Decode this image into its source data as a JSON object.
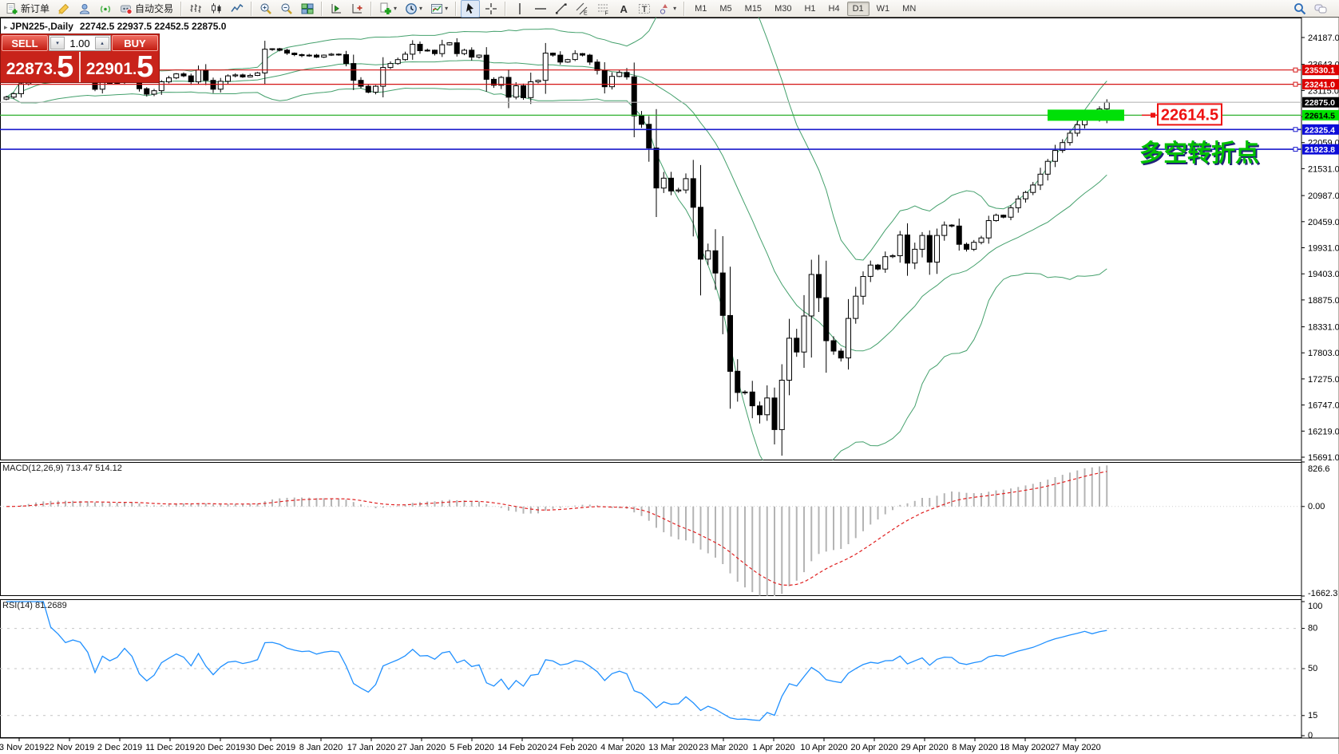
{
  "toolbar": {
    "groups": [
      [
        {
          "name": "new-order",
          "icon": "new-order",
          "label": "新订单"
        },
        {
          "name": "publish",
          "icon": "publish"
        },
        {
          "name": "profiles",
          "icon": "profiles"
        },
        {
          "name": "signals",
          "icon": "signals"
        },
        {
          "name": "autotrading",
          "icon": "autotrading",
          "label": "自动交易"
        }
      ],
      [
        {
          "name": "bar-chart",
          "icon": "bar-chart"
        },
        {
          "name": "candle-chart",
          "icon": "candle-chart"
        },
        {
          "name": "line-chart",
          "icon": "line-chart"
        }
      ],
      [
        {
          "name": "zoom-in",
          "icon": "zoom-in"
        },
        {
          "name": "zoom-out",
          "icon": "zoom-out"
        },
        {
          "name": "tile-windows",
          "icon": "tile-windows"
        }
      ],
      [
        {
          "name": "chart-shift",
          "icon": "chart-shift"
        },
        {
          "name": "auto-scroll",
          "icon": "auto-scroll"
        }
      ],
      [
        {
          "name": "add-indicator",
          "icon": "add-indicator",
          "dropdown": true
        },
        {
          "name": "periods",
          "icon": "periods-clock",
          "dropdown": true
        },
        {
          "name": "indicators-window",
          "icon": "indicators-window",
          "dropdown": true
        }
      ],
      [
        {
          "name": "cursor",
          "icon": "cursor",
          "active": true
        },
        {
          "name": "crosshair",
          "icon": "crosshair"
        }
      ],
      [
        {
          "name": "vertical-line",
          "icon": "vertical-line"
        },
        {
          "name": "horizontal-line",
          "icon": "horizontal-line"
        },
        {
          "name": "trend-line",
          "icon": "trend-line"
        },
        {
          "name": "equidistant-channel",
          "icon": "equidistant-channel"
        },
        {
          "name": "fibonacci",
          "icon": "fibonacci"
        },
        {
          "name": "text",
          "icon": "text"
        },
        {
          "name": "text-label",
          "icon": "text-label"
        },
        {
          "name": "shapes",
          "icon": "shapes",
          "dropdown": true
        }
      ]
    ],
    "timeframes": {
      "items": [
        "M1",
        "M5",
        "M15",
        "M30",
        "H1",
        "H4",
        "D1",
        "W1",
        "MN"
      ],
      "active": "D1"
    },
    "right_icons": [
      {
        "name": "search",
        "icon": "search"
      },
      {
        "name": "chat",
        "icon": "chat"
      }
    ]
  },
  "chart_header": {
    "collapse_glyph": "▸",
    "symbol": "JPN225-,Daily",
    "ohlc": "22742.5 22937.5 22452.5 22875.0"
  },
  "trade_panel": {
    "sell_label": "SELL",
    "buy_label": "BUY",
    "volume": "1.00",
    "spin_down": "▾",
    "spin_up": "▴",
    "sell_int": "22873",
    "buy_int": "22901",
    "decimal_sep": ".",
    "sell_dec": "5",
    "buy_dec": "5"
  },
  "chart_data": {
    "type": "candlestick",
    "title": "JPN225-,Daily",
    "last_ohlc": {
      "open": 22742.5,
      "high": 22937.5,
      "low": 22452.5,
      "close": 22875.0
    },
    "y_axis_ticks": [
      "24187.0",
      "23643.0",
      "23115.0",
      "22587.0",
      "22059.0",
      "21531.0",
      "20987.0",
      "20459.0",
      "19931.0",
      "19403.0",
      "18875.0",
      "18331.0",
      "17803.0",
      "17275.0",
      "16747.0",
      "16219.0",
      "15691.0"
    ],
    "x_labels": [
      "13 Nov 2019",
      "22 Nov 2019",
      "2 Dec 2019",
      "11 Dec 2019",
      "20 Dec 2019",
      "30 Dec 2019",
      "8 Jan 2020",
      "17 Jan 2020",
      "27 Jan 2020",
      "5 Feb 2020",
      "14 Feb 2020",
      "24 Feb 2020",
      "4 Mar 2020",
      "13 Mar 2020",
      "23 Mar 2020",
      "1 Apr 2020",
      "10 Apr 2020",
      "20 Apr 2020",
      "29 Apr 2020",
      "8 May 2020",
      "18 May 2020",
      "27 May 2020"
    ],
    "closes": [
      22980,
      23050,
      23250,
      23330,
      23450,
      23470,
      23380,
      23350,
      23310,
      23340,
      23330,
      23280,
      23140,
      23300,
      23260,
      23300,
      23420,
      23350,
      23150,
      23040,
      23110,
      23290,
      23370,
      23450,
      23410,
      23290,
      23530,
      23320,
      23140,
      23300,
      23410,
      23430,
      23390,
      23420,
      23470,
      23950,
      23960,
      23930,
      23870,
      23840,
      23820,
      23830,
      23790,
      23830,
      23850,
      23840,
      23660,
      23320,
      23200,
      23080,
      23200,
      23580,
      23660,
      23740,
      23850,
      24050,
      23920,
      23930,
      23860,
      24040,
      24080,
      23860,
      23930,
      23790,
      23830,
      23340,
      23220,
      23380,
      22980,
      23210,
      22970,
      23290,
      23320,
      23870,
      23830,
      23690,
      23740,
      23860,
      23830,
      23690,
      23520,
      23190,
      23400,
      23480,
      23390,
      22600,
      22430,
      21950,
      21140,
      21340,
      21080,
      21100,
      21330,
      20750,
      19700,
      19870,
      19420,
      18560,
      17430,
      17000,
      17010,
      16730,
      16550,
      16890,
      16250,
      17250,
      18100,
      17820,
      18550,
      19390,
      18920,
      18050,
      17840,
      17700,
      18500,
      18950,
      19350,
      19580,
      19500,
      19750,
      19770,
      20190,
      19620,
      19900,
      20180,
      19640,
      20180,
      20390,
      20370,
      20000,
      19900,
      20040,
      20130,
      20480,
      20590,
      20550,
      20740,
      20920,
      21050,
      21200,
      21420,
      21680,
      21900,
      22060,
      22250,
      22420,
      22620,
      22550,
      22742,
      22875
    ],
    "levels": [
      {
        "price": 23530.1,
        "label": "23530.1",
        "line": "#d41414",
        "badge_bg": "#dd0000",
        "badge_fg": "#ffffff",
        "handle": true
      },
      {
        "price": 23241.0,
        "label": "23241.0",
        "line": "#d41414",
        "badge_bg": "#dd0000",
        "badge_fg": "#ffffff",
        "handle": true
      },
      {
        "price": 22875.0,
        "label": "22875.0",
        "line": "#b8b8b8",
        "badge_bg": "#000000",
        "badge_fg": "#ffffff",
        "handle": false
      },
      {
        "price": 22614.5,
        "label": "22614.5",
        "line": "#2eb02e",
        "badge_bg": "#00e400",
        "badge_fg": "#000000",
        "handle": false
      },
      {
        "price": 22325.4,
        "label": "22325.4",
        "line": "#1a1acc",
        "badge_bg": "#0d0dd8",
        "badge_fg": "#ffffff",
        "handle": true
      },
      {
        "price": 21923.8,
        "label": "21923.8",
        "line": "#1a1acc",
        "badge_bg": "#0d0dd8",
        "badge_fg": "#ffffff",
        "handle": true
      }
    ],
    "annotations": {
      "highlight_box": {
        "price": 22614.5,
        "color": "#00e008"
      },
      "callout": {
        "text": "22614.5",
        "color": "#ee1111"
      },
      "note": {
        "text": "多空转折点",
        "color": "#00c000",
        "shadow": "#22227a"
      }
    },
    "indicators": {
      "bollinger": {
        "period": 20,
        "deviation": 2,
        "color": "#44a06c"
      },
      "macd": {
        "label": "MACD(12,26,9)",
        "value": "713.47",
        "signal_value": "514.12",
        "y_ticks": [
          "826.6",
          "0.00",
          "-1662.3"
        ],
        "range": [
          -1662.3,
          826.6
        ],
        "hist_color": "#b4b4b4",
        "signal_color": "#e02020"
      },
      "rsi": {
        "label": "RSI(14)",
        "value": "81.2689",
        "y_ticks": [
          100,
          80,
          50,
          15,
          0
        ],
        "levels": [
          80,
          50,
          15
        ],
        "range": [
          0,
          100
        ],
        "line_color": "#2090ff"
      }
    }
  }
}
